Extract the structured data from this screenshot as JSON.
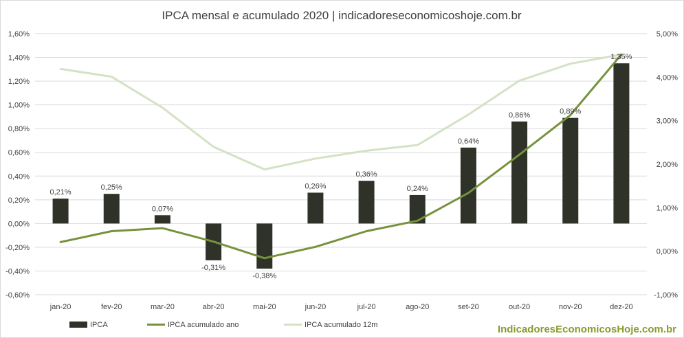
{
  "chart_data": {
    "type": "bar",
    "title": "IPCA mensal e acumulado 2020 | indicadoreseconomicoshoje.com.br",
    "categories": [
      "jan-20",
      "fev-20",
      "mar-20",
      "abr-20",
      "mai-20",
      "jun-20",
      "jul-20",
      "ago-20",
      "set-20",
      "out-20",
      "nov-20",
      "dez-20"
    ],
    "y_left": {
      "ylim": [
        -0.6,
        1.6
      ],
      "ticks": [
        1.6,
        1.4,
        1.2,
        1.0,
        0.8,
        0.6,
        0.4,
        0.2,
        0.0,
        -0.2,
        -0.4,
        -0.6
      ],
      "tick_labels": [
        "1,60%",
        "1,40%",
        "1,20%",
        "1,00%",
        "0,80%",
        "0,60%",
        "0,40%",
        "0,20%",
        "0,00%",
        "-0,20%",
        "-0,40%",
        "-0,60%"
      ]
    },
    "y_right": {
      "ylim": [
        -1.0,
        5.0
      ],
      "ticks": [
        5,
        4,
        3,
        2,
        1,
        0,
        -1
      ],
      "tick_labels": [
        "5,00%",
        "4,00%",
        "3,00%",
        "2,00%",
        "1,00%",
        "0,00%",
        "-1,00%"
      ]
    },
    "grid": true,
    "legend_position": "bottom",
    "series": [
      {
        "name": "IPCA",
        "kind": "bar",
        "axis": "left",
        "color": "#2e3228",
        "values": [
          0.21,
          0.25,
          0.07,
          -0.31,
          -0.38,
          0.26,
          0.36,
          0.24,
          0.64,
          0.86,
          0.89,
          1.35
        ],
        "labels": [
          "0,21%",
          "0,25%",
          "0,07%",
          "-0,31%",
          "-0,38%",
          "0,26%",
          "0,36%",
          "0,24%",
          "0,64%",
          "0,86%",
          "0,89%",
          "1,35%"
        ]
      },
      {
        "name": "IPCA acumulado ano",
        "kind": "line",
        "axis": "right",
        "color": "#76923c",
        "values": [
          0.21,
          0.46,
          0.53,
          0.22,
          -0.16,
          0.1,
          0.46,
          0.7,
          1.34,
          2.22,
          3.13,
          4.52
        ]
      },
      {
        "name": "IPCA acumulado 12m",
        "kind": "line",
        "axis": "right",
        "color": "#d3e2c4",
        "values": [
          4.19,
          4.01,
          3.3,
          2.4,
          1.88,
          2.13,
          2.31,
          2.44,
          3.14,
          3.92,
          4.31,
          4.52
        ]
      }
    ]
  },
  "watermark": "IndicadoresEconomicosHoje.com.br",
  "colors": {
    "watermark": "#8a9a2a",
    "grid": "#d9d9d9",
    "text": "#404040"
  }
}
